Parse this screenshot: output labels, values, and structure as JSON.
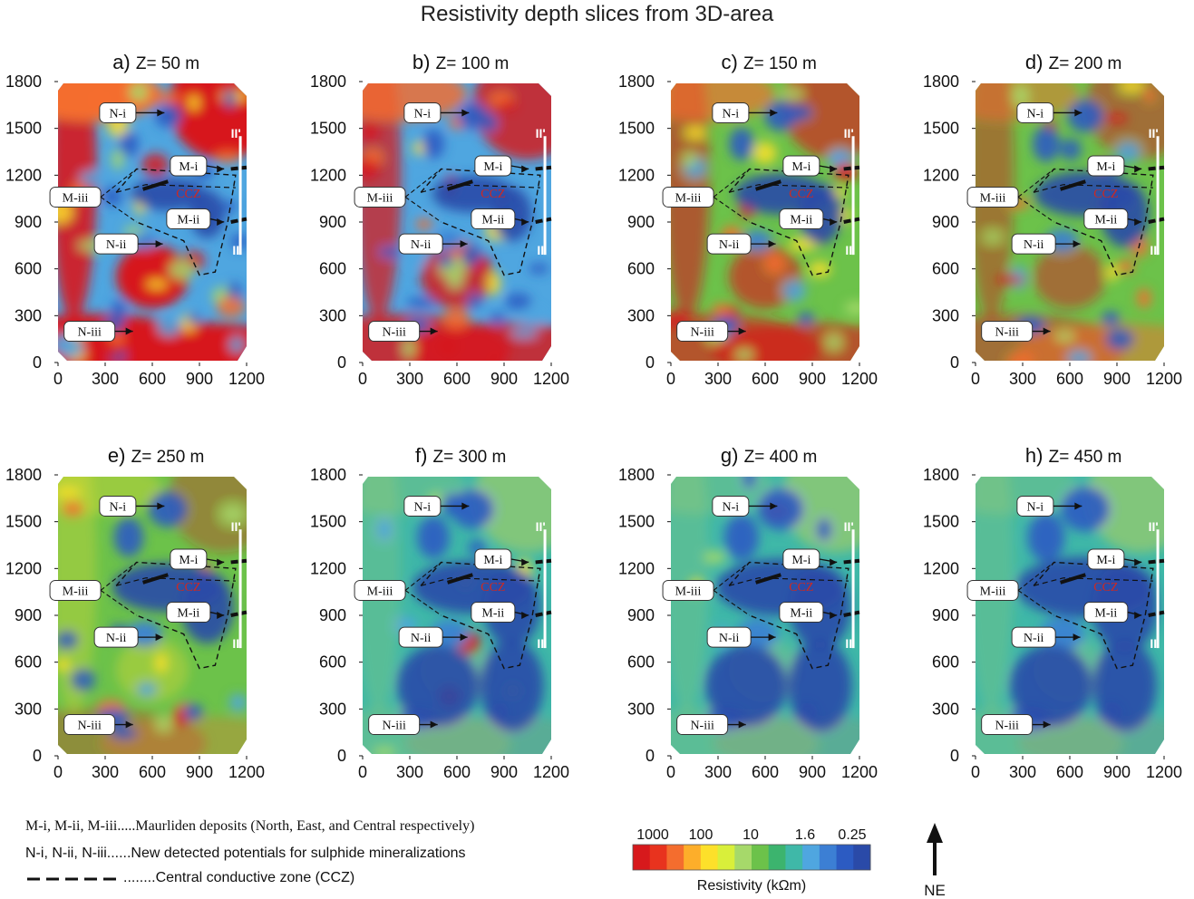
{
  "figure": {
    "title": "Resistivity depth slices from 3D-area"
  },
  "chart_data": {
    "type": "heatmap",
    "title": "Resistivity depth slices from 3D-area",
    "xlim": [
      0,
      1200
    ],
    "ylim": [
      0,
      1800
    ],
    "x_ticks": [
      "0",
      "300",
      "600",
      "900",
      "1200"
    ],
    "y_ticks": [
      "0",
      "300",
      "600",
      "900",
      "1200",
      "1500",
      "1800"
    ],
    "panels": [
      {
        "letter": "a)",
        "depth": "Z= 50 m",
        "depth_m": 50
      },
      {
        "letter": "b)",
        "depth": "Z= 100 m",
        "depth_m": 100
      },
      {
        "letter": "c)",
        "depth": "Z= 150 m",
        "depth_m": 150
      },
      {
        "letter": "d)",
        "depth": "Z= 200 m",
        "depth_m": 200
      },
      {
        "letter": "e)",
        "depth": "Z= 250 m",
        "depth_m": 250
      },
      {
        "letter": "f)",
        "depth": "Z= 300 m",
        "depth_m": 300
      },
      {
        "letter": "g)",
        "depth": "Z= 400 m",
        "depth_m": 400
      },
      {
        "letter": "h)",
        "depth": "Z= 450 m",
        "depth_m": 450
      }
    ],
    "annotations": [
      {
        "label": "N-i",
        "x": 700,
        "y": 1600,
        "color": "#111111"
      },
      {
        "label": "M-i",
        "x": 1080,
        "y": 1240,
        "color": "#111111"
      },
      {
        "label": "CCZ",
        "x": 830,
        "y": 1085,
        "color": "#d2281e"
      },
      {
        "label": "M-iii",
        "x": 370,
        "y": 1090,
        "color": "#111111"
      },
      {
        "label": "M-ii",
        "x": 1080,
        "y": 900,
        "color": "#111111"
      },
      {
        "label": "N-ii",
        "x": 690,
        "y": 760,
        "color": "#111111"
      },
      {
        "label": "N-iii",
        "x": 500,
        "y": 200,
        "color": "#111111"
      }
    ],
    "profile_labels": {
      "start": "II'",
      "end": "II"
    },
    "colorbar": {
      "label": "Resistivity (kΩm)",
      "tick_labels": [
        "1000",
        "100",
        "10",
        "1.6",
        "0.25"
      ],
      "colors": [
        "#d7191c",
        "#e8331e",
        "#f46d2e",
        "#fdae2a",
        "#fde02a",
        "#d9ef3a",
        "#a6d96a",
        "#6cc24a",
        "#3cb46e",
        "#3fb8a8",
        "#4fa6e0",
        "#3c7fd4",
        "#2c5bc2",
        "#2a4aa8"
      ]
    },
    "north_arrow": "NE"
  },
  "legend": {
    "line1": "M-i, M-ii, M-iii.....Maurliden deposits (North, East, and Central respectively)",
    "line2": "N-i, N-ii, N-iii......New detected potentials for sulphide mineralizations",
    "line3": "........Central conductive zone (CCZ)"
  }
}
